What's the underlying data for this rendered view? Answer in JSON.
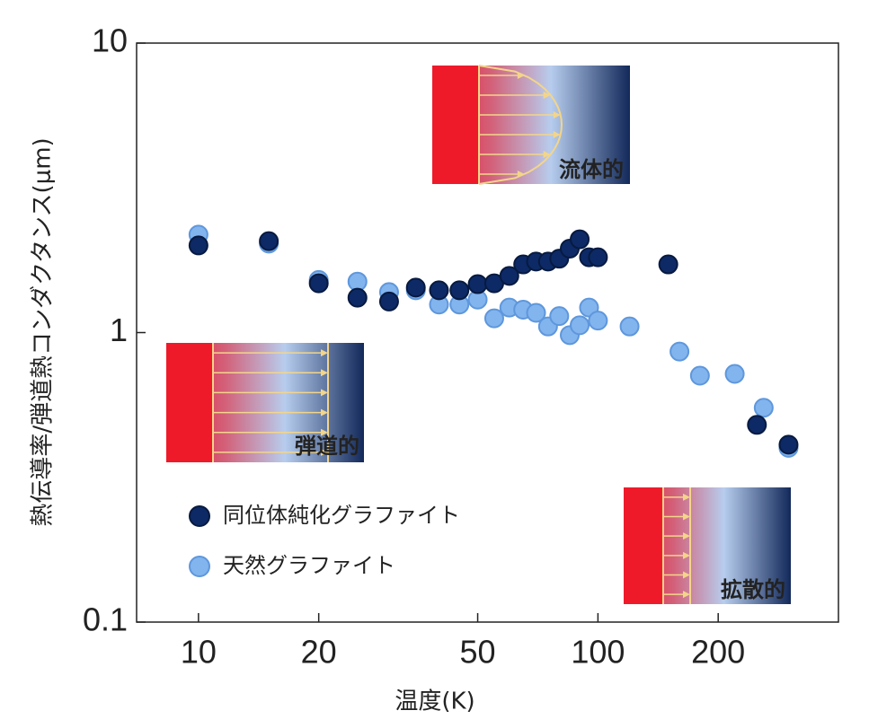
{
  "chart_data": {
    "type": "scatter",
    "x_label": "温度(K)",
    "y_label": "熱伝導率/弾道熱コンダクタンス(μm)",
    "xscale": "log",
    "yscale": "log",
    "xlim": [
      7,
      400
    ],
    "ylim": [
      0.1,
      10
    ],
    "xticks": [
      10,
      20,
      50,
      100,
      200
    ],
    "yticks": [
      0.1,
      1,
      10
    ],
    "legend": "lower-left",
    "series": [
      {
        "name": "同位体純化グラファイト",
        "color": "#0d2a66",
        "x": [
          10,
          15,
          20,
          25,
          30,
          35,
          40,
          45,
          50,
          55,
          60,
          65,
          70,
          75,
          80,
          85,
          90,
          95,
          100,
          150,
          250,
          300
        ],
        "values": [
          2.0,
          2.07,
          1.48,
          1.32,
          1.28,
          1.43,
          1.4,
          1.4,
          1.47,
          1.48,
          1.57,
          1.72,
          1.76,
          1.76,
          1.8,
          1.95,
          2.1,
          1.82,
          1.82,
          1.72,
          0.48,
          0.41
        ]
      },
      {
        "name": "天然グラファイト",
        "color": "#82b4ee",
        "x": [
          10,
          15,
          20,
          25,
          30,
          35,
          40,
          45,
          50,
          55,
          60,
          65,
          70,
          75,
          80,
          85,
          90,
          95,
          100,
          120,
          160,
          180,
          220,
          260,
          300
        ],
        "values": [
          2.18,
          2.03,
          1.52,
          1.5,
          1.38,
          1.4,
          1.25,
          1.25,
          1.3,
          1.12,
          1.22,
          1.2,
          1.17,
          1.05,
          1.14,
          0.98,
          1.06,
          1.22,
          1.1,
          1.05,
          0.86,
          0.71,
          0.72,
          0.55,
          0.4
        ]
      }
    ],
    "annotations": [
      "流体的",
      "弾道的",
      "拡散的"
    ]
  }
}
